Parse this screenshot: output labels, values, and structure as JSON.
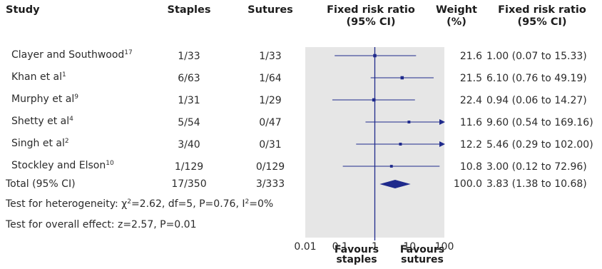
{
  "headers": {
    "study": "Study",
    "staples": "Staples",
    "sutures": "Sutures",
    "fixed_rr_plot_1": "Fixed risk ratio",
    "fixed_rr_plot_2": "(95% CI)",
    "weight_1": "Weight",
    "weight_2": "(%)",
    "fixed_rr_1": "Fixed risk ratio",
    "fixed_rr_2": "(95% CI)"
  },
  "rows": [
    {
      "study": "Clayer and Southwood",
      "ref": "17",
      "staples": "1/33",
      "sutures": "1/33",
      "weight": "21.6",
      "ci_text": "1.00 (0.07 to 15.33)"
    },
    {
      "study": "Khan et al",
      "ref": "1",
      "staples": "6/63",
      "sutures": "1/64",
      "weight": "21.5",
      "ci_text": "6.10 (0.76 to 49.19)"
    },
    {
      "study": "Murphy et al",
      "ref": "9",
      "staples": "1/31",
      "sutures": "1/29",
      "weight": "22.4",
      "ci_text": "0.94 (0.06 to 14.27)"
    },
    {
      "study": "Shetty et al",
      "ref": "4",
      "staples": "5/54",
      "sutures": "0/47",
      "weight": "11.6",
      "ci_text": "9.60 (0.54 to 169.16)"
    },
    {
      "study": "Singh et al",
      "ref": "2",
      "staples": "3/40",
      "sutures": "0/31",
      "weight": "12.2",
      "ci_text": "5.46 (0.29 to 102.00)"
    },
    {
      "study": "Stockley and Elson",
      "ref": "10",
      "staples": "1/129",
      "sutures": "0/129",
      "weight": "10.8",
      "ci_text": "3.00 (0.12 to 72.96)"
    }
  ],
  "total": {
    "label": "Total (95% CI)",
    "staples": "17/350",
    "sutures": "3/333",
    "weight": "100.0",
    "ci_text": "3.83 (1.38 to 10.68)"
  },
  "heterogeneity": {
    "prefix": "Test for heterogeneity: ",
    "chi": "χ",
    "chi_exp": "2",
    "chi_rest": "=2.62, df=5, P=0.76, I",
    "i_exp": "2",
    "i_rest": "=0%"
  },
  "overall_effect": "Test for overall effect: z=2.57, P=0.01",
  "axis": {
    "ticks": [
      "0.01",
      "0.1",
      "1",
      "10",
      "100"
    ]
  },
  "favours": {
    "left_1": "Favours",
    "left_2": "staples",
    "right_1": "Favours",
    "right_2": "sutures"
  },
  "colors": {
    "panel": "#e6e6e6",
    "line": "#1f2a8c",
    "marker": "#1f2a8c"
  },
  "chart_data": {
    "type": "forest",
    "scale": "log",
    "xlim": [
      0.01,
      100
    ],
    "x_ticks": [
      0.01,
      0.1,
      1,
      10,
      100
    ],
    "reference_line": 1,
    "studies": [
      {
        "name": "Clayer and Southwood",
        "rr": 1.0,
        "lo": 0.07,
        "hi": 15.33,
        "weight": 21.6
      },
      {
        "name": "Khan et al",
        "rr": 6.1,
        "lo": 0.76,
        "hi": 49.19,
        "weight": 21.5
      },
      {
        "name": "Murphy et al",
        "rr": 0.94,
        "lo": 0.06,
        "hi": 14.27,
        "weight": 22.4
      },
      {
        "name": "Shetty et al",
        "rr": 9.6,
        "lo": 0.54,
        "hi": 169.16,
        "weight": 11.6
      },
      {
        "name": "Singh et al",
        "rr": 5.46,
        "lo": 0.29,
        "hi": 102.0,
        "weight": 12.2
      },
      {
        "name": "Stockley and Elson",
        "rr": 3.0,
        "lo": 0.12,
        "hi": 72.96,
        "weight": 10.8
      }
    ],
    "pooled": {
      "rr": 3.83,
      "lo": 1.38,
      "hi": 10.68
    }
  }
}
